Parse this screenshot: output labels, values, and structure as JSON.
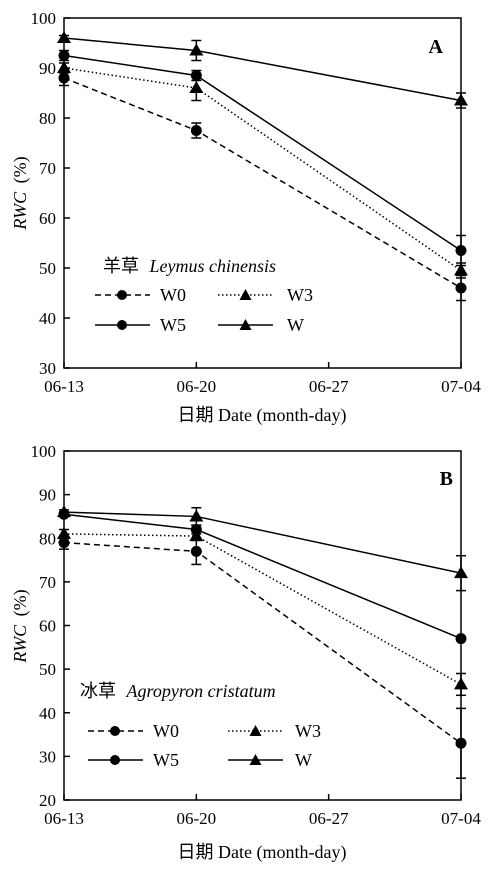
{
  "chart_data": [
    {
      "type": "line",
      "panel_label": "A",
      "species_cn": "羊草",
      "species_latin": "Leymus chinensis",
      "ylabel_italic": "RWC",
      "ylabel_unit": "(%)",
      "xlabel": "日期 Date (month-day)",
      "categories": [
        "06-13",
        "06-20",
        "06-27",
        "07-04"
      ],
      "ylim": [
        30,
        100
      ],
      "yticks": [
        "30",
        "40",
        "50",
        "60",
        "70",
        "80",
        "90",
        "100"
      ],
      "legend_position": "bottom-left",
      "series": [
        {
          "name": "W0",
          "marker": "circle",
          "dash": "dashed",
          "x": [
            "06-13",
            "06-20",
            "07-04"
          ],
          "values": [
            88,
            77.5,
            46
          ],
          "err": [
            1.5,
            1.5,
            2.5
          ]
        },
        {
          "name": "W3",
          "marker": "triangle",
          "dash": "dotted",
          "x": [
            "06-13",
            "06-20",
            "07-04"
          ],
          "values": [
            90,
            86,
            49.5
          ],
          "err": [
            1,
            2.5,
            1.5
          ]
        },
        {
          "name": "W5",
          "marker": "circle",
          "dash": "solid",
          "x": [
            "06-13",
            "06-20",
            "07-04"
          ],
          "values": [
            92.5,
            88.5,
            53.5
          ],
          "err": [
            1,
            1,
            3
          ]
        },
        {
          "name": "W",
          "marker": "triangle",
          "dash": "solid",
          "x": [
            "06-13",
            "06-20",
            "07-04"
          ],
          "values": [
            96,
            93.5,
            83.5
          ],
          "err": [
            0.5,
            2,
            1.5
          ]
        }
      ]
    },
    {
      "type": "line",
      "panel_label": "B",
      "species_cn": "冰草",
      "species_latin": "Agropyron cristatum",
      "ylabel_italic": "RWC",
      "ylabel_unit": "(%)",
      "xlabel": "日期 Date (month-day)",
      "categories": [
        "06-13",
        "06-20",
        "06-27",
        "07-04"
      ],
      "ylim": [
        20,
        100
      ],
      "yticks": [
        "20",
        "30",
        "40",
        "50",
        "60",
        "70",
        "80",
        "90",
        "100"
      ],
      "legend_position": "bottom-left",
      "series": [
        {
          "name": "W0",
          "marker": "circle",
          "dash": "dashed",
          "x": [
            "06-13",
            "06-20",
            "07-04"
          ],
          "values": [
            79,
            77,
            33
          ],
          "err": [
            1.5,
            3,
            8
          ]
        },
        {
          "name": "W3",
          "marker": "triangle",
          "dash": "dotted",
          "x": [
            "06-13",
            "06-20",
            "07-04"
          ],
          "values": [
            81,
            80.5,
            46.5
          ],
          "err": [
            1,
            1,
            2.5
          ]
        },
        {
          "name": "W5",
          "marker": "circle",
          "dash": "solid",
          "x": [
            "06-13",
            "06-20",
            "07-04"
          ],
          "values": [
            85.5,
            82,
            57
          ],
          "err": [
            0.5,
            1,
            0.5
          ]
        },
        {
          "name": "W",
          "marker": "triangle",
          "dash": "solid",
          "x": [
            "06-13",
            "06-20",
            "07-04"
          ],
          "values": [
            86,
            85,
            72
          ],
          "err": [
            0.5,
            2,
            4
          ]
        }
      ]
    }
  ]
}
